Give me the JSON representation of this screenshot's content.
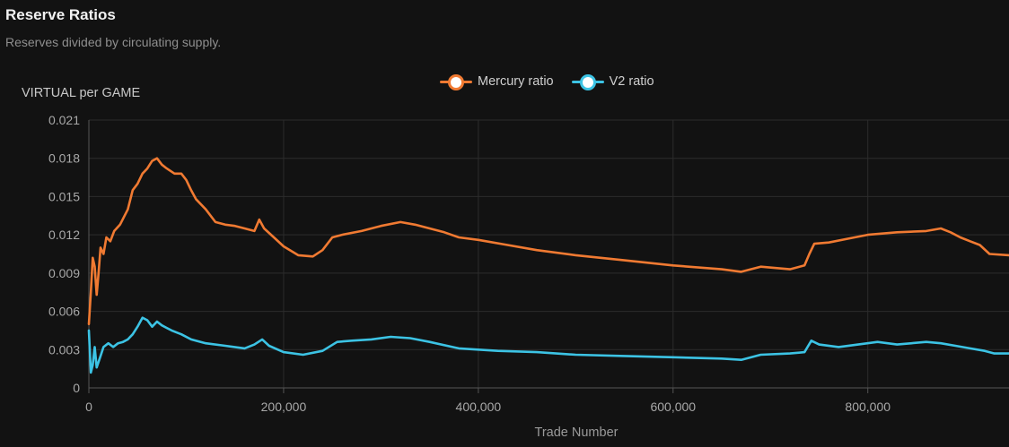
{
  "header": {
    "title": "Reserve Ratios",
    "subtitle": "Reserves divided by circulating supply."
  },
  "chart_data": {
    "type": "line",
    "title": "Reserve Ratios",
    "subtitle": "Reserves divided by circulating supply.",
    "xlabel": "Trade Number",
    "ylabel": "VIRTUAL per GAME",
    "xlim": [
      0,
      945000
    ],
    "ylim": [
      0,
      0.021
    ],
    "grid": true,
    "legend_position": "top-center",
    "yticks": [
      "0",
      "0.003",
      "0.006",
      "0.009",
      "0.012",
      "0.015",
      "0.018",
      "0.021"
    ],
    "xticks": [
      "0",
      "200,000",
      "400,000",
      "600,000",
      "800,000"
    ],
    "series": [
      {
        "name": "Mercury ratio",
        "color": "#f07a32",
        "x": [
          0,
          2000,
          4000,
          6000,
          8000,
          10000,
          12000,
          15000,
          18000,
          22000,
          26000,
          32000,
          40000,
          45000,
          50000,
          55000,
          60000,
          65000,
          70000,
          75000,
          80000,
          88000,
          95000,
          100000,
          105000,
          110000,
          120000,
          130000,
          140000,
          150000,
          160000,
          170000,
          175000,
          180000,
          190000,
          200000,
          215000,
          230000,
          240000,
          250000,
          260000,
          280000,
          300000,
          320000,
          335000,
          350000,
          365000,
          380000,
          400000,
          430000,
          460000,
          500000,
          550000,
          600000,
          650000,
          670000,
          690000,
          720000,
          735000,
          740000,
          745000,
          760000,
          780000,
          800000,
          830000,
          860000,
          875000,
          885000,
          895000,
          905000,
          915000,
          925000,
          945000
        ],
        "values": [
          0.005,
          0.0075,
          0.0102,
          0.0095,
          0.0073,
          0.009,
          0.011,
          0.0105,
          0.0118,
          0.0115,
          0.0123,
          0.0128,
          0.014,
          0.0155,
          0.016,
          0.0168,
          0.0172,
          0.0178,
          0.018,
          0.0175,
          0.0172,
          0.0168,
          0.0168,
          0.0163,
          0.0155,
          0.0148,
          0.014,
          0.013,
          0.0128,
          0.0127,
          0.0125,
          0.0123,
          0.0132,
          0.0125,
          0.0118,
          0.0111,
          0.0104,
          0.0103,
          0.0108,
          0.0118,
          0.012,
          0.0123,
          0.0127,
          0.013,
          0.0128,
          0.0125,
          0.0122,
          0.0118,
          0.0116,
          0.0112,
          0.0108,
          0.0104,
          0.01,
          0.0096,
          0.0093,
          0.0091,
          0.0095,
          0.0093,
          0.0096,
          0.0105,
          0.0113,
          0.0114,
          0.0117,
          0.012,
          0.0122,
          0.0123,
          0.0125,
          0.0122,
          0.0118,
          0.0115,
          0.0112,
          0.0105,
          0.0104
        ]
      },
      {
        "name": "V2 ratio",
        "color": "#3cc3e4",
        "x": [
          0,
          2000,
          4000,
          6000,
          8000,
          12000,
          15000,
          20000,
          25000,
          30000,
          35000,
          40000,
          45000,
          50000,
          55000,
          60000,
          65000,
          70000,
          75000,
          80000,
          85000,
          95000,
          105000,
          120000,
          140000,
          160000,
          170000,
          178000,
          185000,
          200000,
          220000,
          240000,
          255000,
          270000,
          290000,
          310000,
          330000,
          350000,
          380000,
          420000,
          460000,
          500000,
          550000,
          600000,
          650000,
          670000,
          690000,
          720000,
          735000,
          742000,
          750000,
          770000,
          790000,
          810000,
          830000,
          860000,
          875000,
          890000,
          905000,
          920000,
          930000,
          945000
        ],
        "values": [
          0.0045,
          0.0012,
          0.0018,
          0.0032,
          0.0016,
          0.0025,
          0.0032,
          0.0035,
          0.0032,
          0.0035,
          0.0036,
          0.0038,
          0.0042,
          0.0048,
          0.0055,
          0.0053,
          0.0048,
          0.0052,
          0.0049,
          0.0047,
          0.0045,
          0.0042,
          0.0038,
          0.0035,
          0.0033,
          0.0031,
          0.0034,
          0.0038,
          0.0033,
          0.0028,
          0.0026,
          0.0029,
          0.0036,
          0.0037,
          0.0038,
          0.004,
          0.0039,
          0.0036,
          0.0031,
          0.0029,
          0.0028,
          0.0026,
          0.0025,
          0.0024,
          0.0023,
          0.0022,
          0.0026,
          0.0027,
          0.0028,
          0.0037,
          0.0034,
          0.0032,
          0.0034,
          0.0036,
          0.0034,
          0.0036,
          0.0035,
          0.0033,
          0.0031,
          0.0029,
          0.0027,
          0.0027
        ]
      }
    ]
  }
}
